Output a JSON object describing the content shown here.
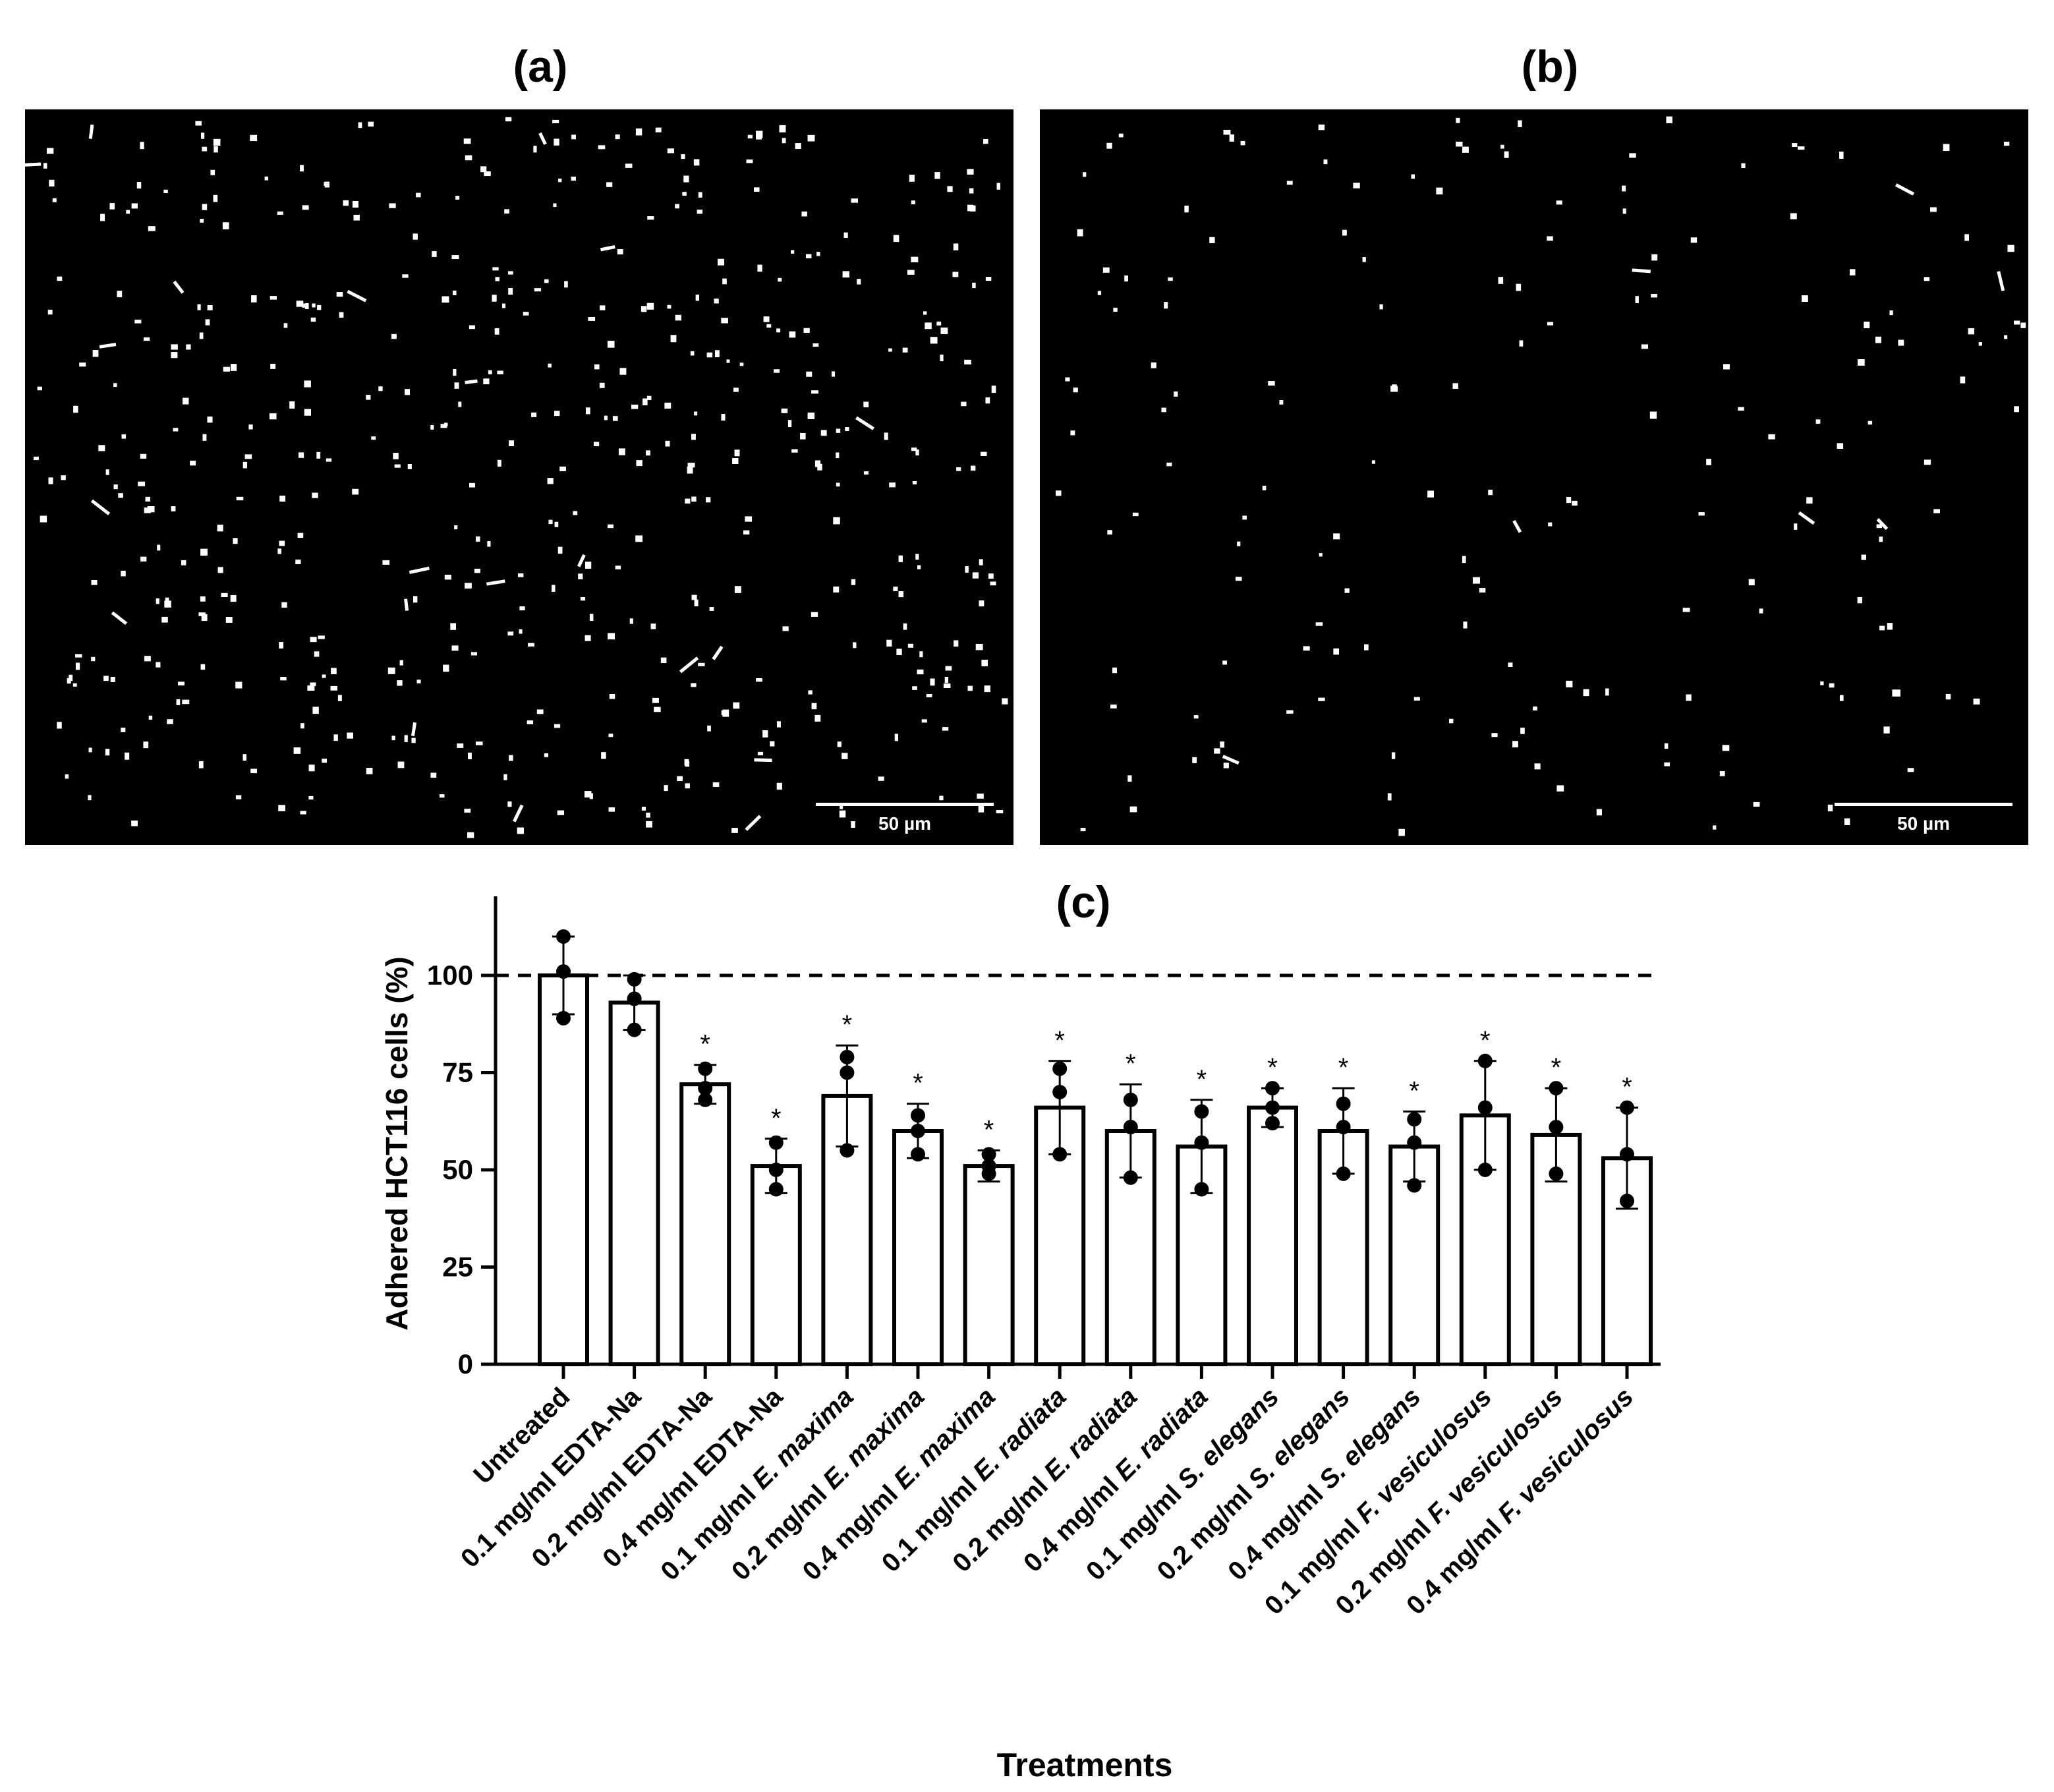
{
  "panels": {
    "a_label": "(a)",
    "b_label": "(b)",
    "c_label": "(c)"
  },
  "micrographs": {
    "a": {
      "scale_text": "50 µm",
      "cell_density": "high"
    },
    "b": {
      "scale_text": "50 µm",
      "cell_density": "low"
    }
  },
  "chart_data": {
    "type": "bar",
    "title": "(c)",
    "xlabel": "Treatments",
    "ylabel": "Adhered HCT116 cells (%)",
    "ylim": [
      0,
      120
    ],
    "yticks": [
      0,
      25,
      50,
      75,
      100
    ],
    "reference_line": 100,
    "categories": [
      "Untreated",
      "0.1 mg/ml EDTA-Na",
      "0.2 mg/ml EDTA-Na",
      "0.4 mg/ml EDTA-Na",
      "0.1 mg/ml E. maxima",
      "0.2 mg/ml E. maxima",
      "0.4 mg/ml E. maxima",
      "0.1 mg/ml E. radiata",
      "0.2 mg/ml E. radiata",
      "0.4 mg/ml E. radiata",
      "0.1 mg/ml S. elegans",
      "0.2 mg/ml S. elegans",
      "0.4 mg/ml S. elegans",
      "0.1 mg/ml F. vesiculosus",
      "0.2 mg/ml F. vesiculosus",
      "0.4 mg/ml F. vesiculosus"
    ],
    "italic_parts": [
      "",
      "",
      "",
      "",
      "E. maxima",
      "E. maxima",
      "E. maxima",
      "E. radiata",
      "E. radiata",
      "E. radiata",
      "S. elegans",
      "S. elegans",
      "S. elegans",
      "F. vesiculosus",
      "F. vesiculosus",
      "F. vesiculosus"
    ],
    "values": [
      100,
      93,
      72,
      51,
      69,
      60,
      51,
      66,
      60,
      56,
      66,
      60,
      56,
      64,
      59,
      53
    ],
    "sd": [
      10,
      7,
      5,
      7,
      13,
      7,
      4,
      12,
      12,
      12,
      5,
      11,
      9,
      14,
      12,
      13
    ],
    "points": [
      [
        110,
        101,
        89
      ],
      [
        99,
        94,
        86
      ],
      [
        76,
        71,
        68
      ],
      [
        57,
        50,
        45
      ],
      [
        79,
        75,
        55
      ],
      [
        64,
        60,
        54
      ],
      [
        54,
        51,
        49
      ],
      [
        76,
        70,
        54
      ],
      [
        68,
        61,
        48
      ],
      [
        65,
        57,
        45
      ],
      [
        71,
        66,
        62
      ],
      [
        67,
        61,
        49
      ],
      [
        63,
        57,
        46
      ],
      [
        78,
        66,
        50
      ],
      [
        71,
        61,
        49
      ],
      [
        66,
        54,
        42
      ]
    ],
    "significance": [
      "",
      "",
      "*",
      "*",
      "*",
      "*",
      "*",
      "*",
      "*",
      "*",
      "*",
      "*",
      "*",
      "*",
      "*",
      "*"
    ],
    "bar_fill": "#ffffff",
    "bar_stroke": "#000000",
    "grid": false,
    "legend": "none"
  }
}
